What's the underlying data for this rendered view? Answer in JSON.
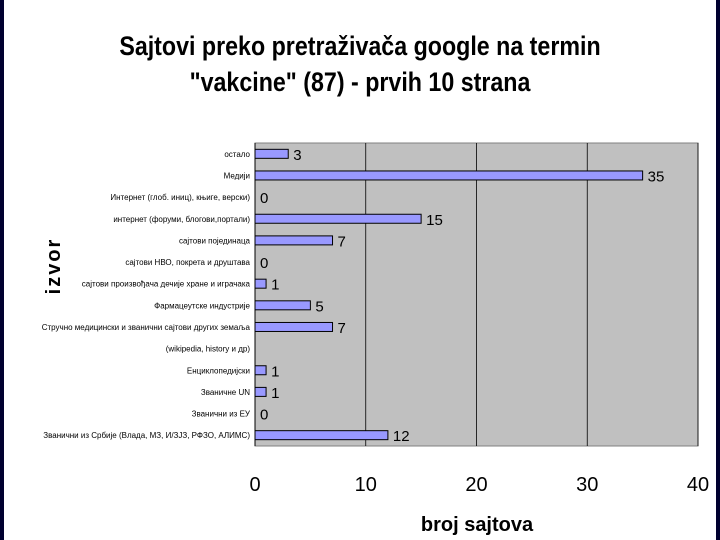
{
  "colors": {
    "background": "#000030",
    "plot_area": "#c0c0c0",
    "bar_fill": "#9999ff",
    "bar_stroke": "#000000",
    "gridline": "#000000"
  },
  "chart_data": {
    "type": "bar",
    "orientation": "horizontal",
    "title": "Sajtovi preko pretraživača google na termin \"vakcine\" (87) - prvih 10 strana",
    "title_lines": [
      "Sajtovi preko pretraživača google na termin",
      "\"vakcine\" (87) - prvih 10 strana"
    ],
    "xlabel": "broj sajtova",
    "ylabel": "izvor",
    "xlim": [
      0,
      40
    ],
    "x_ticks": [
      "0",
      "10",
      "20",
      "30",
      "40"
    ],
    "grid": true,
    "categories": [
      "остало",
      "Медији",
      "Интернет (глоб. иниц), књиге, верски)",
      "интернет (форуми, блогови,портали)",
      "сајтови појединаца",
      "сајтови НВО, покрета и друштава",
      "сајтови произвођача дечије хране и играчака",
      "Фармацеутске индустрије",
      "Стручно медицински и званични сајтови других земаља",
      "(wikipedia, history и др)",
      "Енциклопедијски",
      "Званичне UN",
      "Званични из ЕУ",
      "Званични из Србије (Влада, МЗ, И/ЗЈЗ, РФЗО, АЛИМС)"
    ],
    "values": [
      3,
      35,
      0,
      15,
      7,
      0,
      1,
      5,
      7,
      null,
      1,
      1,
      0,
      12
    ],
    "data_labels": [
      "3",
      "35",
      "0",
      "15",
      "7",
      "0",
      "1",
      "5",
      "7",
      "",
      "1",
      "1",
      "0",
      "12"
    ]
  }
}
